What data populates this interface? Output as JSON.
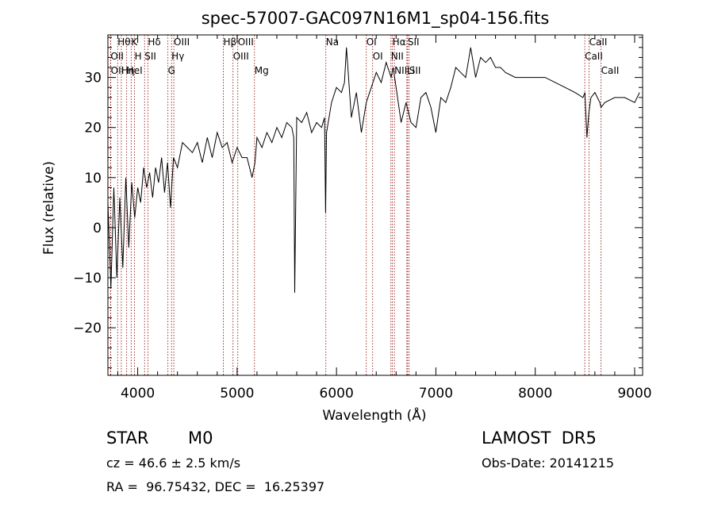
{
  "chart_data": {
    "type": "line",
    "title": "spec-57007-GAC097N16M1_sp04-156.fits",
    "xlabel": "Wavelength (Å)",
    "ylabel": "Flux (relative)",
    "xlim": [
      3700,
      9080
    ],
    "ylim": [
      -29.5,
      38.5
    ],
    "xticks": [
      4000,
      5000,
      6000,
      7000,
      8000,
      9000
    ],
    "yticks": [
      -20,
      -10,
      0,
      10,
      20,
      30
    ],
    "grid": false,
    "line_color": "#000000",
    "marker_color": "#8b0000",
    "series": [
      {
        "x": [
          3700,
          3730,
          3760,
          3790,
          3820,
          3850,
          3880,
          3910,
          3940,
          3970,
          4000,
          4030,
          4060,
          4090,
          4120,
          4150,
          4180,
          4210,
          4240,
          4270,
          4300,
          4330,
          4360,
          4400,
          4450,
          4500,
          4550,
          4600,
          4650,
          4700,
          4750,
          4800,
          4850,
          4900,
          4950,
          5000,
          5050,
          5100,
          5150,
          5180,
          5200,
          5250,
          5300,
          5350,
          5400,
          5450,
          5500,
          5550,
          5570,
          5580,
          5600,
          5650,
          5700,
          5750,
          5800,
          5850,
          5880,
          5890,
          5900,
          5950,
          6000,
          6050,
          6080,
          6100,
          6150,
          6200,
          6250,
          6300,
          6350,
          6400,
          6450,
          6500,
          6550,
          6570,
          6600,
          6650,
          6700,
          6750,
          6800,
          6850,
          6900,
          6950,
          7000,
          7050,
          7100,
          7150,
          7200,
          7250,
          7300,
          7350,
          7400,
          7450,
          7500,
          7550,
          7600,
          7650,
          7700,
          7800,
          7900,
          8000,
          8100,
          8200,
          8300,
          8400,
          8480,
          8500,
          8520,
          8540,
          8560,
          8600,
          8650,
          8662,
          8700,
          8800,
          8900,
          9000,
          9050
        ],
        "y": [
          5,
          -12,
          8,
          -10,
          6,
          -8,
          10,
          -4,
          9,
          2,
          8,
          5,
          12,
          8,
          11,
          6,
          12,
          9,
          14,
          7,
          13,
          4,
          14,
          12,
          17,
          16,
          15,
          17,
          13,
          18,
          14,
          19,
          16,
          17,
          13,
          16,
          14,
          14,
          10,
          13,
          18,
          16,
          19,
          17,
          20,
          18,
          21,
          20,
          18,
          -13,
          22,
          21,
          23,
          19,
          21,
          20,
          22,
          3,
          19,
          25,
          28,
          27,
          29,
          36,
          22,
          27,
          19,
          25,
          28,
          31,
          29,
          33,
          30,
          32,
          28,
          21,
          25,
          21,
          20,
          26,
          27,
          24,
          19,
          26,
          25,
          28,
          32,
          31,
          30,
          36,
          30,
          34,
          33,
          34,
          32,
          32,
          31,
          30,
          30,
          30,
          30,
          29,
          28,
          27,
          26,
          27,
          18,
          23,
          26,
          27,
          25,
          24,
          25,
          26,
          26,
          25,
          27
        ]
      }
    ],
    "lines": [
      {
        "label": "Hθ",
        "wavelength": 3798
      },
      {
        "label": "OII",
        "wavelength": 3727
      },
      {
        "label": "OII",
        "wavelength": 3729
      },
      {
        "label": "Hη",
        "wavelength": 3835
      },
      {
        "label": "HeI",
        "wavelength": 3889
      },
      {
        "label": "K",
        "wavelength": 3934
      },
      {
        "label": "H",
        "wavelength": 3968
      },
      {
        "label": "Hδ",
        "wavelength": 4102
      },
      {
        "label": "SII",
        "wavelength": 4069
      },
      {
        "label": "OIII",
        "wavelength": 4363
      },
      {
        "label": "Hγ",
        "wavelength": 4340
      },
      {
        "label": "G",
        "wavelength": 4304
      },
      {
        "label": "Hβ",
        "wavelength": 4861
      },
      {
        "label": "OIII",
        "wavelength": 4959
      },
      {
        "label": "OIII",
        "wavelength": 5007
      },
      {
        "label": "Mg",
        "wavelength": 5175
      },
      {
        "label": "Na",
        "wavelength": 5893
      },
      {
        "label": "OI",
        "wavelength": 6300
      },
      {
        "label": "OI",
        "wavelength": 6364
      },
      {
        "label": "Hα",
        "wavelength": 6563
      },
      {
        "label": "NII",
        "wavelength": 6548
      },
      {
        "label": "NII",
        "wavelength": 6583
      },
      {
        "label": "SII",
        "wavelength": 6716
      },
      {
        "label": "Li",
        "wavelength": 6708
      },
      {
        "label": "SII",
        "wavelength": 6731
      },
      {
        "label": "CaII",
        "wavelength": 8542
      },
      {
        "label": "CaII",
        "wavelength": 8498
      },
      {
        "label": "CaII",
        "wavelength": 8662
      }
    ]
  },
  "info": {
    "class": "STAR",
    "subclass": "M0",
    "survey": "LAMOST  DR5",
    "cz": "cz = 46.6 ± 2.5 km/s",
    "obs_date": "Obs-Date: 20141215",
    "coords": "RA =  96.75432, DEC =  16.25397"
  }
}
